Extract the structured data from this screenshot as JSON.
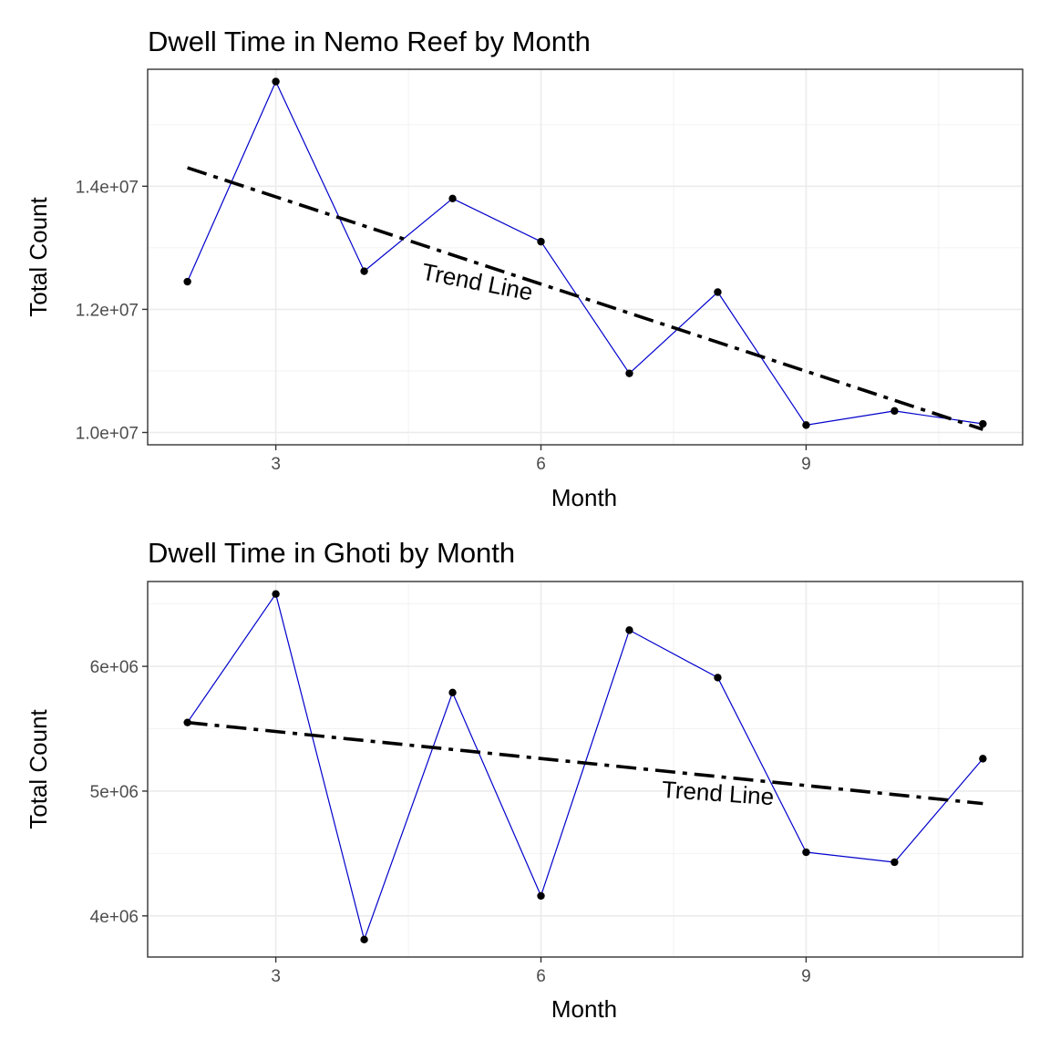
{
  "chart_data": [
    {
      "type": "line",
      "title": "Dwell Time in Nemo Reef by Month",
      "xlabel": "Month",
      "ylabel": "Total Count",
      "xlim": [
        1.55,
        11.45
      ],
      "ylim": [
        9800000,
        15900000
      ],
      "x_ticks": [
        3,
        6,
        9
      ],
      "x_tick_labels": [
        "3",
        "6",
        "9"
      ],
      "y_ticks": [
        10000000,
        12000000,
        14000000
      ],
      "y_tick_labels": [
        "1.0e+07",
        "1.2e+07",
        "1.4e+07"
      ],
      "grid": true,
      "series": [
        {
          "x": [
            2,
            3,
            4,
            5,
            6,
            7,
            8,
            9,
            10,
            11
          ],
          "values": [
            12450000,
            15700000,
            12620000,
            13800000,
            13100000,
            10960000,
            12280000,
            10120000,
            10350000,
            10140000
          ],
          "color": "#0000cc"
        }
      ],
      "trend": {
        "x": [
          2,
          11
        ],
        "values": [
          14300000,
          10050000
        ],
        "color": "#000000",
        "style": "dashdot",
        "label": "Trend Line"
      }
    },
    {
      "type": "line",
      "title": "Dwell Time in Ghoti by Month",
      "xlabel": "Month",
      "ylabel": "Total Count",
      "xlim": [
        1.55,
        11.45
      ],
      "ylim": [
        3670000,
        6680000
      ],
      "x_ticks": [
        3,
        6,
        9
      ],
      "x_tick_labels": [
        "3",
        "6",
        "9"
      ],
      "y_ticks": [
        4000000,
        5000000,
        6000000
      ],
      "y_tick_labels": [
        "4e+06",
        "5e+06",
        "6e+06"
      ],
      "grid": true,
      "series": [
        {
          "x": [
            2,
            3,
            4,
            5,
            6,
            7,
            8,
            9,
            10,
            11
          ],
          "values": [
            5550000,
            6580000,
            3810000,
            5790000,
            4160000,
            6290000,
            5910000,
            4510000,
            4430000,
            5260000
          ],
          "color": "#0000cc"
        }
      ],
      "trend": {
        "x": [
          2,
          11
        ],
        "values": [
          5550000,
          4900000
        ],
        "color": "#000000",
        "style": "dashdot",
        "label": "Trend Line"
      }
    }
  ]
}
